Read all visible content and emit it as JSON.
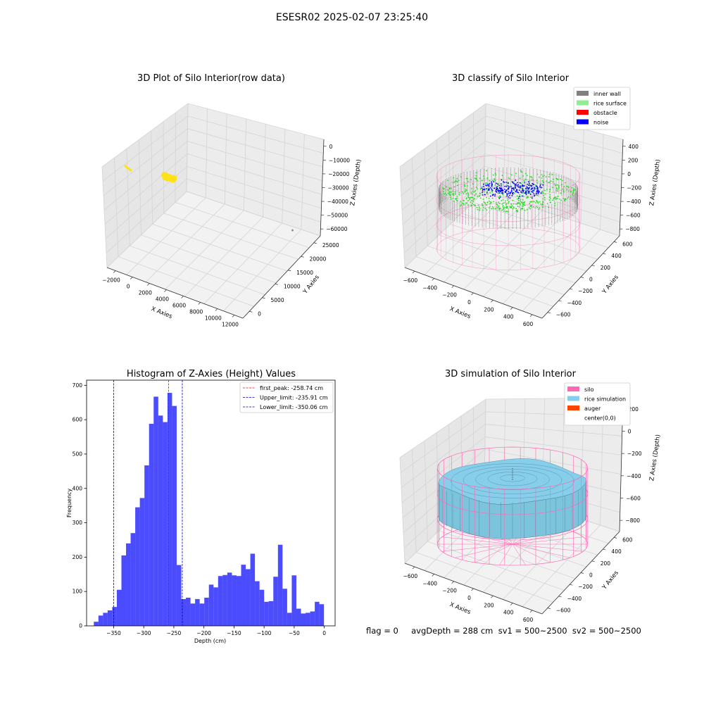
{
  "figure": {
    "suptitle": "ESESR02 2025-02-07 23:25:40",
    "stats_text": "flag = 0     avgDepth = 288 cm  sv1 = 500~2500  sv2 = 500~2500"
  },
  "colors": {
    "inner_wall": "#808080",
    "rice_surface": "#90ee90",
    "obstacle": "#ff0000",
    "noise": "#0000ff",
    "raw_points": "#ffe119",
    "silo": "#ff69b4",
    "rice_simulation": "#87ceeb",
    "auger": "#ff4500",
    "histogram": "#0000ff",
    "first_peak_line": "#ff0000",
    "limit_lines": "#0000aa"
  },
  "chart_data": [
    {
      "type": "scatter",
      "projection": "3d",
      "title": "3D Plot of Silo Interior(row data)",
      "xlabel": "X Axies",
      "ylabel": "Y Axies",
      "zlabel": "Z Axies (Depth)",
      "x_ticks": [
        "−2000",
        "0",
        "2000",
        "4000",
        "6000",
        "8000",
        "10000",
        "12000"
      ],
      "y_ticks": [
        "0",
        "5000",
        "10000",
        "15000",
        "20000",
        "25000"
      ],
      "z_ticks": [
        "0",
        "−10000",
        "−20000",
        "−30000",
        "−40000",
        "−50000",
        "−60000"
      ],
      "xlim": [
        -2500,
        12500
      ],
      "ylim": [
        0,
        27000
      ],
      "zlim": [
        -62000,
        2000
      ],
      "series": [
        {
          "points": [
            [
              -600,
              0,
              -300
            ],
            [
              0,
              300,
              -300
            ],
            [
              550,
              150,
              -500
            ],
            [
              12000,
              25000,
              -60000
            ]
          ]
        }
      ],
      "grid": true
    },
    {
      "type": "scatter",
      "projection": "3d",
      "title": "3D classify of Silo Interior",
      "xlabel": "X Axies",
      "ylabel": "Y Axies",
      "zlabel": "Z Axies (Depth)",
      "x_ticks": [
        "−600",
        "−400",
        "−200",
        "0",
        "200",
        "400",
        "600"
      ],
      "y_ticks": [
        "−600",
        "−400",
        "−200",
        "0",
        "200",
        "400",
        "600"
      ],
      "z_ticks": [
        "400",
        "200",
        "0",
        "−200",
        "−400",
        "−600",
        "−800"
      ],
      "xlim": [
        -650,
        650
      ],
      "ylim": [
        -650,
        650
      ],
      "zlim": [
        -900,
        400
      ],
      "legend": [
        "inner wall",
        "rice surface",
        "obstacle",
        "noise"
      ],
      "legend_location": "upper right",
      "silo": {
        "radius": 600,
        "z_top": 0,
        "z_bottom": -900
      },
      "series": [
        {
          "name": "inner wall",
          "z_range": [
            -400,
            -150
          ],
          "radius": 580
        },
        {
          "name": "rice surface",
          "z_range": [
            -450,
            -100
          ]
        },
        {
          "name": "noise",
          "z_range": [
            -250,
            -50
          ]
        }
      ],
      "grid": true
    },
    {
      "type": "bar",
      "title": "Histogram of Z-Axies (Height) Values",
      "xlabel": "Depth (cm)",
      "ylabel": "Frequency",
      "xlim": [
        -395,
        18
      ],
      "ylim": [
        0,
        715
      ],
      "x_ticks": [
        -350,
        -300,
        -250,
        -200,
        -150,
        -100,
        -50,
        0
      ],
      "x_tick_labels": [
        "−350",
        "−300",
        "−250",
        "−200",
        "−150",
        "−100",
        "−50",
        "0"
      ],
      "y_ticks": [
        0,
        100,
        200,
        300,
        400,
        500,
        600,
        700
      ],
      "bin_start": -383,
      "bin_width": 7.65,
      "values": [
        12,
        30,
        38,
        45,
        55,
        105,
        205,
        240,
        270,
        345,
        372,
        467,
        588,
        667,
        612,
        593,
        678,
        640,
        177,
        78,
        82,
        65,
        78,
        65,
        82,
        120,
        112,
        145,
        148,
        155,
        147,
        145,
        178,
        165,
        210,
        130,
        105,
        70,
        72,
        143,
        236,
        108,
        38,
        147,
        50,
        36,
        38,
        42,
        70,
        63
      ],
      "vlines": [
        {
          "name": "first_peak",
          "x": -258.74,
          "label": "first_peak: -258.74 cm"
        },
        {
          "name": "Upper_limit",
          "x": -235.91,
          "label": "Upper_limit: -235.91 cm"
        },
        {
          "name": "Lower_limit",
          "x": -350.06,
          "label": "Lower_limit: -350.06 cm"
        }
      ],
      "legend_location": "upper right"
    },
    {
      "type": "surface",
      "projection": "3d",
      "title": "3D simulation of Silo Interior",
      "xlabel": "X Axies",
      "ylabel": "Y Axies",
      "zlabel": "Z Axies (Depth)",
      "x_ticks": [
        "−600",
        "−400",
        "−200",
        "0",
        "200",
        "400",
        "600"
      ],
      "y_ticks": [
        "−600",
        "−400",
        "−200",
        "0",
        "200",
        "400",
        "600"
      ],
      "z_ticks": [
        "200",
        "0",
        "−200",
        "−400",
        "−600",
        "−800"
      ],
      "xlim": [
        -650,
        650
      ],
      "ylim": [
        -650,
        650
      ],
      "zlim": [
        -900,
        300
      ],
      "legend": [
        "silo",
        "rice simulation",
        "auger",
        "center(0,0)"
      ],
      "legend_location": "upper right",
      "silo": {
        "radius": 600,
        "z_top": 0,
        "z_bottom": -900
      },
      "rice_surface": {
        "avg_depth": -288
      },
      "grid": true
    }
  ]
}
